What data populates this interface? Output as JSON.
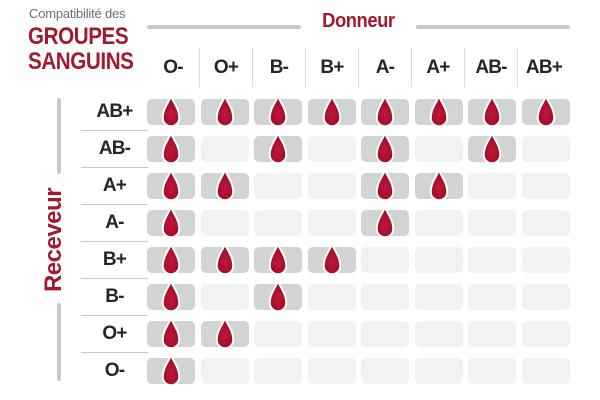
{
  "title": {
    "eyebrow": "Compatibilité des",
    "line1": "GROUPES",
    "line2": "SANGUINS"
  },
  "chart_data": {
    "type": "heatmap",
    "title": "Compatibilité des GROUPES SANGUINS",
    "x_axis_label": "Donneur",
    "y_axis_label": "Receveur",
    "columns": [
      "O-",
      "O+",
      "B-",
      "B+",
      "A-",
      "A+",
      "AB-",
      "AB+"
    ],
    "rows": [
      "AB+",
      "AB-",
      "A+",
      "A-",
      "B+",
      "B-",
      "O+",
      "O-"
    ],
    "matrix": [
      [
        1,
        1,
        1,
        1,
        1,
        1,
        1,
        1
      ],
      [
        1,
        0,
        1,
        0,
        1,
        0,
        1,
        0
      ],
      [
        1,
        1,
        0,
        0,
        1,
        1,
        0,
        0
      ],
      [
        1,
        0,
        0,
        0,
        1,
        0,
        0,
        0
      ],
      [
        1,
        1,
        1,
        1,
        0,
        0,
        0,
        0
      ],
      [
        1,
        0,
        1,
        0,
        0,
        0,
        0,
        0
      ],
      [
        1,
        1,
        0,
        0,
        0,
        0,
        0,
        0
      ],
      [
        1,
        0,
        0,
        0,
        0,
        0,
        0,
        0
      ]
    ],
    "marker": "blood-drop-icon",
    "marker_meaning": "compatible",
    "grid_on": false,
    "legend_position": "none"
  },
  "colors": {
    "brand_red": "#a41932",
    "drop_red": "#a50f2b",
    "label_dark": "#262626",
    "label_gray": "#6e6e6e",
    "cell_filled": "#d2d4d4",
    "cell_empty": "#f2f2f3",
    "bar_gray": "#c8c9c9",
    "separator_light": "#dadada",
    "separator": "#c6c6c6"
  }
}
